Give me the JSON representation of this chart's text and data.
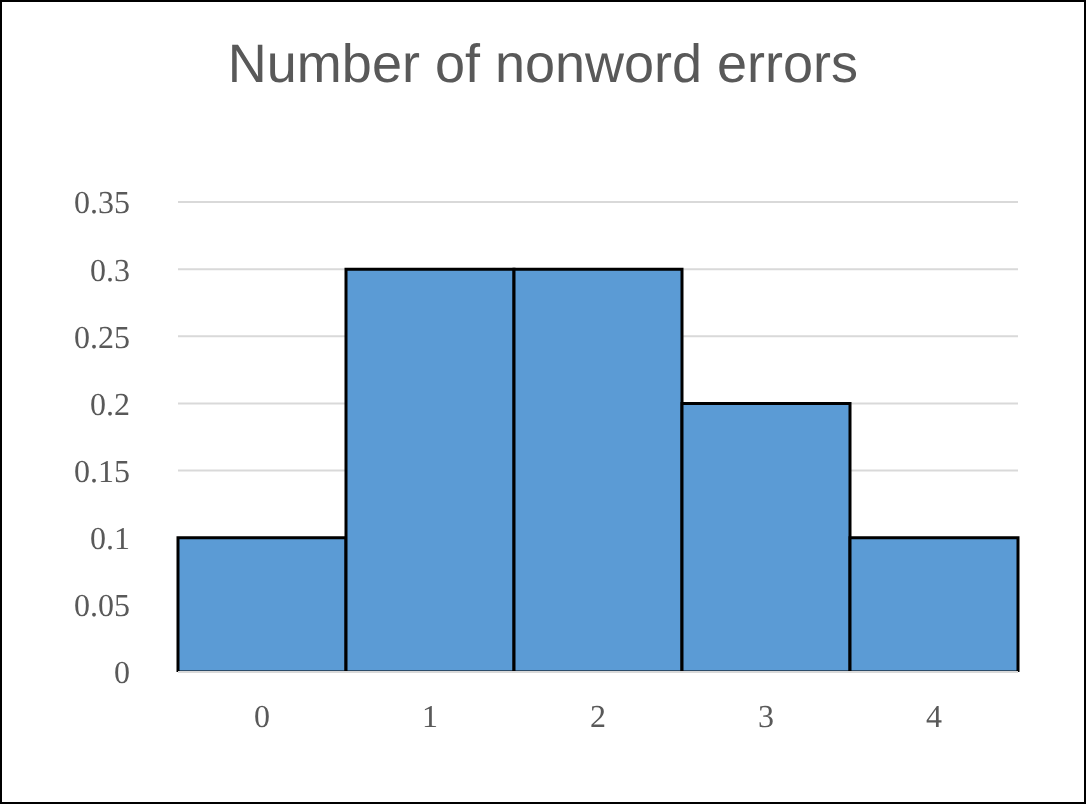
{
  "chart_data": {
    "type": "bar",
    "title": "Number of nonword errors",
    "categories": [
      "0",
      "1",
      "2",
      "3",
      "4"
    ],
    "values": [
      0.1,
      0.3,
      0.3,
      0.2,
      0.1
    ],
    "color": "#5b9bd5",
    "ylim": [
      0,
      0.35
    ],
    "yticks": [
      0,
      0.05,
      0.1,
      0.15,
      0.2,
      0.25,
      0.3,
      0.35
    ],
    "grid": "y",
    "legend": false
  }
}
